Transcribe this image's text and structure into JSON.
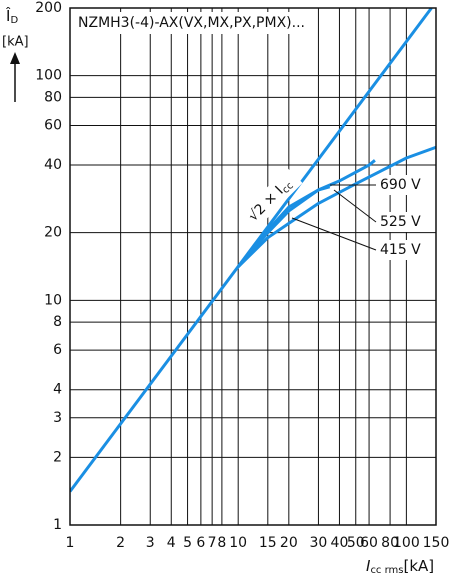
{
  "chart_data": {
    "type": "line",
    "title": "NZMH3(-4)-AX(VX,MX,PX,PMX)...",
    "xlabel": {
      "symbol": "I",
      "subscript": "cc rms",
      "unit": "[kA]"
    },
    "ylabel": {
      "symbol": "Î",
      "subscript": "D",
      "unit": "[kA]"
    },
    "annotation": {
      "text": "√2 × I",
      "subscript": "cc"
    },
    "xlog": true,
    "ylog": true,
    "grid": true,
    "xlim": [
      1,
      150
    ],
    "ylim": [
      1,
      200
    ],
    "xticks": [
      1,
      2,
      3,
      4,
      5,
      6,
      7,
      8,
      10,
      15,
      20,
      30,
      40,
      50,
      60,
      80,
      100,
      150
    ],
    "yticks": [
      1,
      2,
      3,
      4,
      6,
      8,
      10,
      20,
      40,
      60,
      80,
      100,
      200
    ],
    "series": [
      {
        "color": "#1a8fe3",
        "x": [
          1,
          141
        ],
        "values": [
          1.41,
          200
        ]
      },
      {
        "name": "690 V",
        "color": "#1a8fe3",
        "x": [
          10,
          15,
          20,
          30,
          40,
          60,
          65
        ],
        "values": [
          14.1,
          20.5,
          26,
          31,
          34,
          40,
          42
        ]
      },
      {
        "name": "525 V",
        "color": "#1a8fe3",
        "x": [
          10,
          15,
          20,
          30,
          35
        ],
        "values": [
          14.1,
          20,
          25,
          31,
          32
        ]
      },
      {
        "name": "415 V",
        "color": "#1a8fe3",
        "x": [
          10,
          15,
          20,
          30,
          50,
          100,
          150
        ],
        "values": [
          14.1,
          19,
          22,
          27,
          33,
          43,
          48
        ]
      }
    ]
  }
}
